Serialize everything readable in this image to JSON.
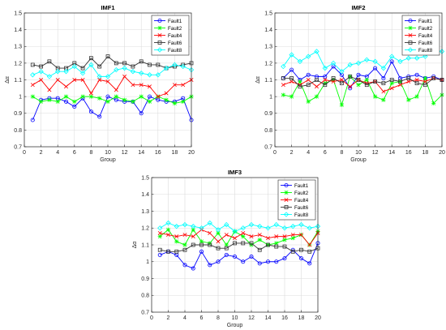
{
  "chart_data": [
    {
      "type": "line",
      "title": "IMF1",
      "xlabel": "Group",
      "ylabel": "Δα",
      "xlim": [
        0,
        20
      ],
      "ylim": [
        0.7,
        1.5
      ],
      "xticks": [
        0,
        2,
        4,
        6,
        8,
        10,
        12,
        14,
        16,
        18,
        20
      ],
      "yticks": [
        0.7,
        0.8,
        0.9,
        1,
        1.1,
        1.2,
        1.3,
        1.4,
        1.5
      ],
      "grid": true,
      "legend_position": "top-right",
      "x": [
        1,
        2,
        3,
        4,
        5,
        6,
        7,
        8,
        9,
        10,
        11,
        12,
        13,
        14,
        15,
        16,
        17,
        18,
        19,
        20
      ],
      "series": [
        {
          "name": "Fault1",
          "color": "#0000ff",
          "marker": "circle",
          "values": [
            0.86,
            0.98,
            0.99,
            0.99,
            0.97,
            0.94,
            0.99,
            0.91,
            0.88,
            1.0,
            0.98,
            0.97,
            0.97,
            0.9,
            1.0,
            0.98,
            0.97,
            0.97,
            0.99,
            0.86
          ]
        },
        {
          "name": "Fault2",
          "color": "#00ff00",
          "marker": "star",
          "values": [
            1.0,
            0.97,
            0.98,
            0.97,
            1.0,
            0.97,
            1.0,
            1.0,
            0.99,
            0.97,
            1.0,
            0.98,
            0.97,
            1.0,
            0.97,
            1.0,
            0.98,
            0.96,
            0.97,
            1.0
          ]
        },
        {
          "name": "Fault4",
          "color": "#ff0000",
          "marker": "x",
          "values": [
            1.07,
            1.1,
            1.04,
            1.1,
            1.06,
            1.1,
            1.1,
            1.02,
            1.1,
            1.09,
            1.04,
            1.12,
            1.07,
            1.07,
            1.06,
            1.0,
            1.02,
            1.07,
            1.07,
            1.1
          ]
        },
        {
          "name": "Fault6",
          "color": "#333333",
          "marker": "square",
          "values": [
            1.19,
            1.18,
            1.21,
            1.17,
            1.17,
            1.2,
            1.17,
            1.23,
            1.18,
            1.24,
            1.2,
            1.2,
            1.18,
            1.21,
            1.19,
            1.19,
            1.17,
            1.18,
            1.19,
            1.2
          ]
        },
        {
          "name": "Fault8",
          "color": "#00ffff",
          "marker": "diamond",
          "values": [
            1.13,
            1.15,
            1.12,
            1.15,
            1.15,
            1.18,
            1.14,
            1.19,
            1.12,
            1.12,
            1.16,
            1.17,
            1.15,
            1.14,
            1.13,
            1.13,
            1.17,
            1.19,
            1.18,
            1.16
          ]
        }
      ]
    },
    {
      "type": "line",
      "title": "IMF2",
      "xlabel": "Group",
      "ylabel": "Δα",
      "xlim": [
        0,
        20
      ],
      "ylim": [
        0.7,
        1.5
      ],
      "xticks": [
        0,
        2,
        4,
        6,
        8,
        10,
        12,
        14,
        16,
        18,
        20
      ],
      "yticks": [
        0.7,
        0.8,
        0.9,
        1,
        1.1,
        1.2,
        1.3,
        1.4,
        1.5
      ],
      "grid": true,
      "legend_position": "top-right",
      "x": [
        1,
        2,
        3,
        4,
        5,
        6,
        7,
        8,
        9,
        10,
        11,
        12,
        13,
        14,
        15,
        16,
        17,
        18,
        19,
        20
      ],
      "series": [
        {
          "name": "Fault1",
          "color": "#0000ff",
          "marker": "circle",
          "values": [
            1.11,
            1.16,
            1.1,
            1.13,
            1.12,
            1.12,
            1.18,
            1.13,
            1.05,
            1.13,
            1.12,
            1.17,
            1.11,
            1.21,
            1.11,
            1.12,
            1.13,
            1.11,
            1.12,
            1.1
          ]
        },
        {
          "name": "Fault2",
          "color": "#00ff00",
          "marker": "star",
          "values": [
            1.01,
            1.0,
            1.09,
            0.97,
            1.0,
            1.08,
            1.1,
            0.95,
            1.12,
            1.07,
            1.1,
            1.0,
            0.98,
            1.08,
            1.09,
            0.98,
            1.0,
            1.11,
            0.96,
            1.01
          ]
        },
        {
          "name": "Fault4",
          "color": "#ff0000",
          "marker": "x",
          "values": [
            1.07,
            1.09,
            1.07,
            1.1,
            1.06,
            1.1,
            1.09,
            1.1,
            1.06,
            1.1,
            1.08,
            1.09,
            1.03,
            1.05,
            1.07,
            1.09,
            1.1,
            1.09,
            1.11,
            1.1
          ]
        },
        {
          "name": "Fault6",
          "color": "#333333",
          "marker": "square",
          "values": [
            1.11,
            1.11,
            1.06,
            1.07,
            1.1,
            1.07,
            1.11,
            1.08,
            1.12,
            1.1,
            1.07,
            1.09,
            1.08,
            1.1,
            1.09,
            1.11,
            1.08,
            1.07,
            1.11,
            1.1
          ]
        },
        {
          "name": "Fault8",
          "color": "#00ffff",
          "marker": "diamond",
          "values": [
            1.18,
            1.25,
            1.21,
            1.24,
            1.27,
            1.17,
            1.2,
            1.15,
            1.19,
            1.2,
            1.22,
            1.21,
            1.17,
            1.24,
            1.21,
            1.23,
            1.23,
            1.24,
            1.28,
            1.27
          ]
        }
      ]
    },
    {
      "type": "line",
      "title": "IMF3",
      "xlabel": "Group",
      "ylabel": "Δα",
      "xlim": [
        0,
        20
      ],
      "ylim": [
        0.7,
        1.5
      ],
      "xticks": [
        0,
        2,
        4,
        6,
        8,
        10,
        12,
        14,
        16,
        18,
        20
      ],
      "yticks": [
        0.7,
        0.8,
        0.9,
        1,
        1.1,
        1.2,
        1.3,
        1.4,
        1.5
      ],
      "grid": true,
      "legend_position": "top-right",
      "x": [
        1,
        2,
        3,
        4,
        5,
        6,
        7,
        8,
        9,
        10,
        11,
        12,
        13,
        14,
        15,
        16,
        17,
        18,
        19,
        20
      ],
      "series": [
        {
          "name": "Fault1",
          "color": "#0000ff",
          "marker": "circle",
          "values": [
            1.04,
            1.06,
            1.04,
            0.98,
            0.96,
            1.06,
            0.98,
            1.0,
            1.04,
            1.03,
            1.0,
            1.03,
            0.99,
            1.0,
            1.0,
            1.02,
            1.07,
            1.02,
            0.99,
            1.11
          ]
        },
        {
          "name": "Fault2",
          "color": "#00ff00",
          "marker": "star",
          "values": [
            1.15,
            1.19,
            1.12,
            1.1,
            1.19,
            1.12,
            1.11,
            1.17,
            1.1,
            1.18,
            1.15,
            1.1,
            1.13,
            1.1,
            1.11,
            1.13,
            1.14,
            1.16,
            1.1,
            1.18
          ]
        },
        {
          "name": "Fault4",
          "color": "#ff0000",
          "marker": "x",
          "values": [
            1.17,
            1.16,
            1.15,
            1.16,
            1.15,
            1.19,
            1.17,
            1.12,
            1.16,
            1.14,
            1.17,
            1.15,
            1.16,
            1.14,
            1.15,
            1.15,
            1.16,
            1.16,
            1.1,
            1.17
          ]
        },
        {
          "name": "Fault6",
          "color": "#333333",
          "marker": "square",
          "values": [
            1.07,
            1.06,
            1.06,
            1.07,
            1.1,
            1.1,
            1.1,
            1.08,
            1.08,
            1.11,
            1.11,
            1.11,
            1.07,
            1.1,
            1.09,
            1.09,
            1.06,
            1.07,
            1.06,
            1.08
          ]
        },
        {
          "name": "Fault8",
          "color": "#00ffff",
          "marker": "diamond",
          "values": [
            1.2,
            1.23,
            1.21,
            1.22,
            1.21,
            1.2,
            1.23,
            1.19,
            1.22,
            1.18,
            1.2,
            1.22,
            1.21,
            1.2,
            1.22,
            1.2,
            1.21,
            1.22,
            1.2,
            1.21
          ]
        }
      ]
    }
  ]
}
